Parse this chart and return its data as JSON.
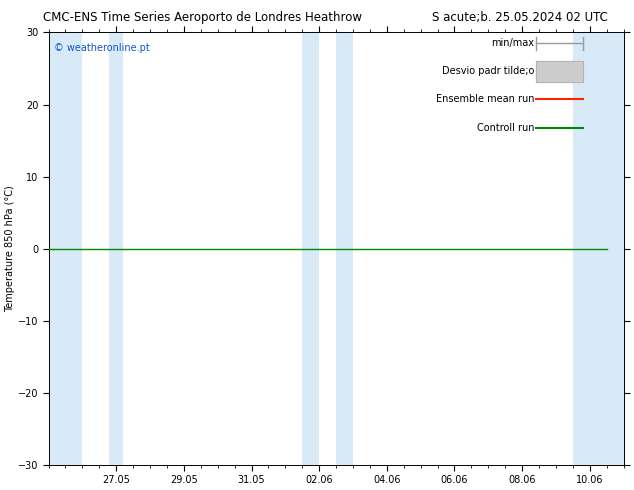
{
  "title_left": "CMC-ENS Time Series Aeroporto de Londres Heathrow",
  "title_right": "S acute;b. 25.05.2024 02 UTC",
  "ylabel": "Temperature 850 hPa (°C)",
  "watermark": "© weatheronline.pt",
  "ylim": [
    -30,
    30
  ],
  "yticks": [
    -30,
    -20,
    -10,
    0,
    10,
    20,
    30
  ],
  "xtick_labels": [
    "27.05",
    "29.05",
    "31.05",
    "02.06",
    "04.06",
    "06.06",
    "08.06",
    "10.06"
  ],
  "xtick_positions": [
    2,
    4,
    6,
    8,
    10,
    12,
    14,
    16
  ],
  "xlim": [
    0,
    17
  ],
  "band_positions": [
    [
      0,
      1.0
    ],
    [
      1.8,
      2.2
    ],
    [
      7.5,
      8.0
    ],
    [
      8.5,
      9.0
    ],
    [
      15.5,
      17.0
    ]
  ],
  "data_line_y": 0.0,
  "background_color": "#ffffff",
  "plot_bg_color": "#ffffff",
  "band_color": "#d8eaf8",
  "line_color": "#008800",
  "title_fontsize": 8.5,
  "axis_fontsize": 7,
  "tick_fontsize": 7,
  "legend_fontsize": 7,
  "legend_items": [
    "min/max",
    "Desvio padr tilde;o",
    "Ensemble mean run",
    "Controll run"
  ],
  "legend_line_colors": [
    "#999999",
    "#bbbbbb",
    "#ff2200",
    "#008800"
  ],
  "watermark_color": "#1155cc"
}
